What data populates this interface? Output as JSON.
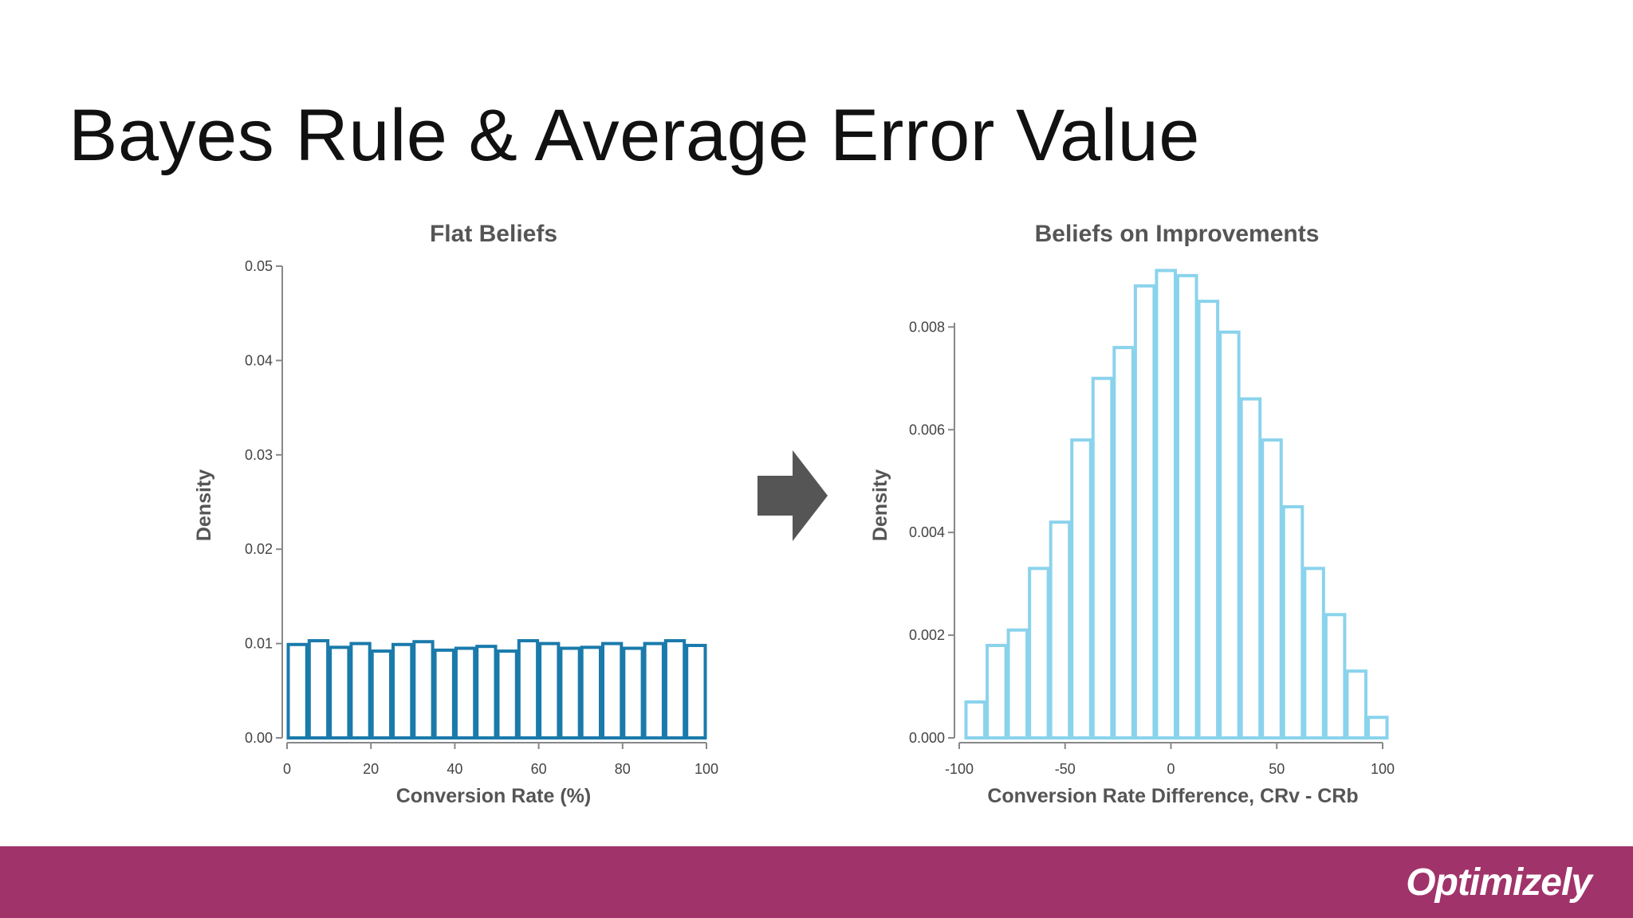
{
  "slide": {
    "title": "Bayes Rule & Average Error Value",
    "logo_text": "Optimizely",
    "footer_color": "#a0336a"
  },
  "chart_data": [
    {
      "type": "bar",
      "title": "Flat Beliefs",
      "xlabel": "Conversion Rate (%)",
      "ylabel": "Density",
      "xlim": [
        0,
        100
      ],
      "ylim": [
        0,
        0.05
      ],
      "xticks": [
        0,
        20,
        40,
        60,
        80,
        100
      ],
      "xtick_labels": [
        "0",
        "20",
        "40",
        "60",
        "80",
        "100"
      ],
      "yticks": [
        0,
        0.01,
        0.02,
        0.03,
        0.04,
        0.05
      ],
      "ytick_labels": [
        "0.00",
        "0.01",
        "0.02",
        "0.03",
        "0.04",
        "0.05"
      ],
      "bin_edges": [
        0,
        5,
        10,
        15,
        20,
        25,
        30,
        35,
        40,
        45,
        50,
        55,
        60,
        65,
        70,
        75,
        80,
        85,
        90,
        95,
        100
      ],
      "values": [
        0.0099,
        0.0103,
        0.0096,
        0.01,
        0.0092,
        0.0099,
        0.0102,
        0.0093,
        0.0095,
        0.0097,
        0.0092,
        0.0103,
        0.01,
        0.0095,
        0.0096,
        0.01,
        0.0095,
        0.01,
        0.0103,
        0.0098
      ],
      "color": "#1a7aab",
      "grid": false
    },
    {
      "type": "bar",
      "title": "Beliefs on Improvements",
      "xlabel": "Conversion Rate Difference, CRv - CRb",
      "ylabel": "Density",
      "xlim": [
        -100,
        100
      ],
      "ylim": [
        0,
        0.0092
      ],
      "xticks": [
        -100,
        -50,
        0,
        50,
        100
      ],
      "xtick_labels": [
        "-100",
        "-50",
        "0",
        "50",
        "100"
      ],
      "yticks": [
        0,
        0.002,
        0.004,
        0.006,
        0.008
      ],
      "ytick_labels": [
        "0.000",
        "0.002",
        "0.004",
        "0.006",
        "0.008"
      ],
      "bin_edges": [
        -100,
        -90,
        -80,
        -70,
        -60,
        -50,
        -40,
        -30,
        -20,
        -10,
        0,
        10,
        20,
        30,
        40,
        50,
        60,
        70,
        80,
        90,
        100
      ],
      "values": [
        0.0007,
        0.0018,
        0.0021,
        0.0033,
        0.0042,
        0.0058,
        0.007,
        0.0076,
        0.0088,
        0.0091,
        0.009,
        0.0085,
        0.0079,
        0.0066,
        0.0058,
        0.0045,
        0.0033,
        0.0024,
        0.0013,
        0.0004
      ],
      "color": "#8ad3ec",
      "grid": false
    }
  ]
}
